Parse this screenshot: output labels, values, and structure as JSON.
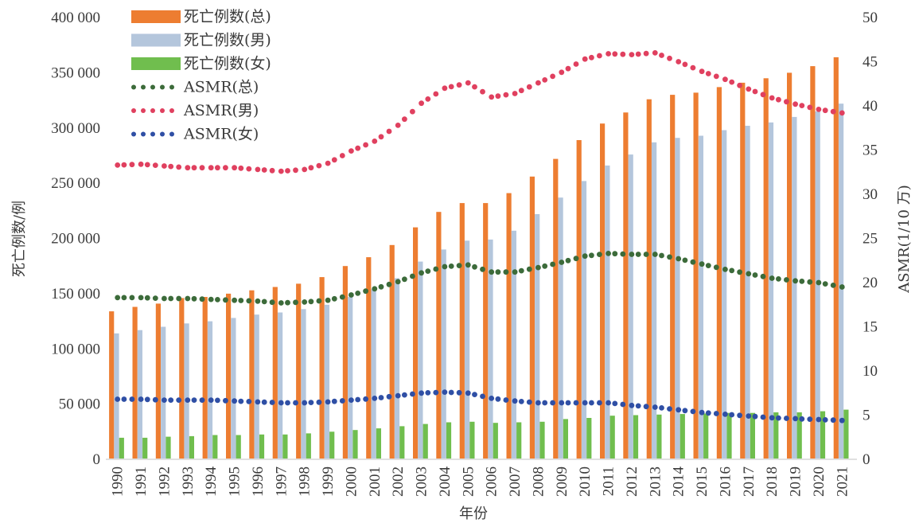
{
  "chart_data": {
    "type": "bar",
    "title": "",
    "xlabel": "年份",
    "ylabel": "死亡例数/例",
    "y2label": "ASMR(1/10 万)",
    "ylim": [
      0,
      400000
    ],
    "y2lim": [
      0,
      50
    ],
    "yticks": [
      "0",
      "50 000",
      "100 000",
      "150 000",
      "200 000",
      "250 000",
      "300 000",
      "350 000",
      "400 000"
    ],
    "y2ticks": [
      "0",
      "5",
      "10",
      "15",
      "20",
      "25",
      "30",
      "35",
      "40",
      "45",
      "50"
    ],
    "grid": false,
    "legend_position": "top-left",
    "categories": [
      "1990",
      "1991",
      "1992",
      "1993",
      "1994",
      "1995",
      "1996",
      "1997",
      "1998",
      "1999",
      "2000",
      "2001",
      "2002",
      "2003",
      "2004",
      "2005",
      "2006",
      "2007",
      "2008",
      "2009",
      "2010",
      "2011",
      "2012",
      "2013",
      "2014",
      "2015",
      "2016",
      "2017",
      "2018",
      "2019",
      "2020",
      "2021"
    ],
    "series": [
      {
        "name": "死亡例数(总)",
        "kind": "bar",
        "axis": "left",
        "color": "#ED7D31",
        "values": [
          134000,
          138000,
          141000,
          146000,
          147000,
          150000,
          153000,
          156000,
          159000,
          165000,
          175000,
          183000,
          194000,
          210000,
          224000,
          232000,
          232000,
          241000,
          256000,
          272000,
          289000,
          304000,
          314000,
          326000,
          330000,
          332000,
          337000,
          341000,
          345000,
          350000,
          356000,
          364000
        ]
      },
      {
        "name": "死亡例数(男)",
        "kind": "bar",
        "axis": "left",
        "color": "#B4C6DC",
        "values": [
          114000,
          117000,
          120000,
          123000,
          125000,
          128000,
          131000,
          133000,
          136000,
          140000,
          147000,
          154000,
          164000,
          179000,
          190000,
          198000,
          199000,
          207000,
          222000,
          237000,
          252000,
          266000,
          276000,
          287000,
          291000,
          293000,
          298000,
          302000,
          305000,
          310000,
          315000,
          322000
        ]
      },
      {
        "name": "死亡例数(女)",
        "kind": "bar",
        "axis": "left",
        "color": "#70BE4E",
        "values": [
          19500,
          19500,
          20500,
          21000,
          22000,
          22000,
          22500,
          22500,
          23500,
          25000,
          26500,
          28000,
          30000,
          32000,
          33500,
          34000,
          33000,
          33500,
          34000,
          36500,
          37500,
          39500,
          40000,
          40500,
          41000,
          41500,
          42000,
          42000,
          42500,
          42500,
          43500,
          45000
        ]
      },
      {
        "name": "ASMR(总)",
        "kind": "line",
        "axis": "right",
        "color": "#3C6B3A",
        "values": [
          18.3,
          18.3,
          18.2,
          18.2,
          18.1,
          18.0,
          17.9,
          17.7,
          17.8,
          18.0,
          18.6,
          19.3,
          20.1,
          21.1,
          21.8,
          22.0,
          21.2,
          21.2,
          21.7,
          22.3,
          23.0,
          23.3,
          23.2,
          23.2,
          22.7,
          22.1,
          21.5,
          21.0,
          20.5,
          20.2,
          20.0,
          19.5
        ]
      },
      {
        "name": "ASMR(男)",
        "kind": "line",
        "axis": "right",
        "color": "#E0405F",
        "values": [
          33.3,
          33.4,
          33.2,
          33.0,
          33.0,
          33.0,
          32.8,
          32.6,
          32.8,
          33.5,
          34.9,
          36.0,
          37.8,
          40.3,
          42.0,
          42.6,
          41.0,
          41.4,
          42.6,
          43.8,
          45.3,
          45.9,
          45.8,
          46.0,
          45.0,
          43.9,
          43.0,
          41.9,
          40.9,
          40.2,
          39.6,
          39.2
        ]
      },
      {
        "name": "ASMR(女)",
        "kind": "line",
        "axis": "right",
        "color": "#2F4FA5",
        "values": [
          6.8,
          6.8,
          6.7,
          6.7,
          6.7,
          6.6,
          6.5,
          6.4,
          6.4,
          6.5,
          6.7,
          6.9,
          7.2,
          7.5,
          7.6,
          7.5,
          6.9,
          6.6,
          6.4,
          6.4,
          6.4,
          6.4,
          6.1,
          5.9,
          5.6,
          5.3,
          5.1,
          4.9,
          4.7,
          4.6,
          4.5,
          4.4
        ]
      }
    ]
  }
}
